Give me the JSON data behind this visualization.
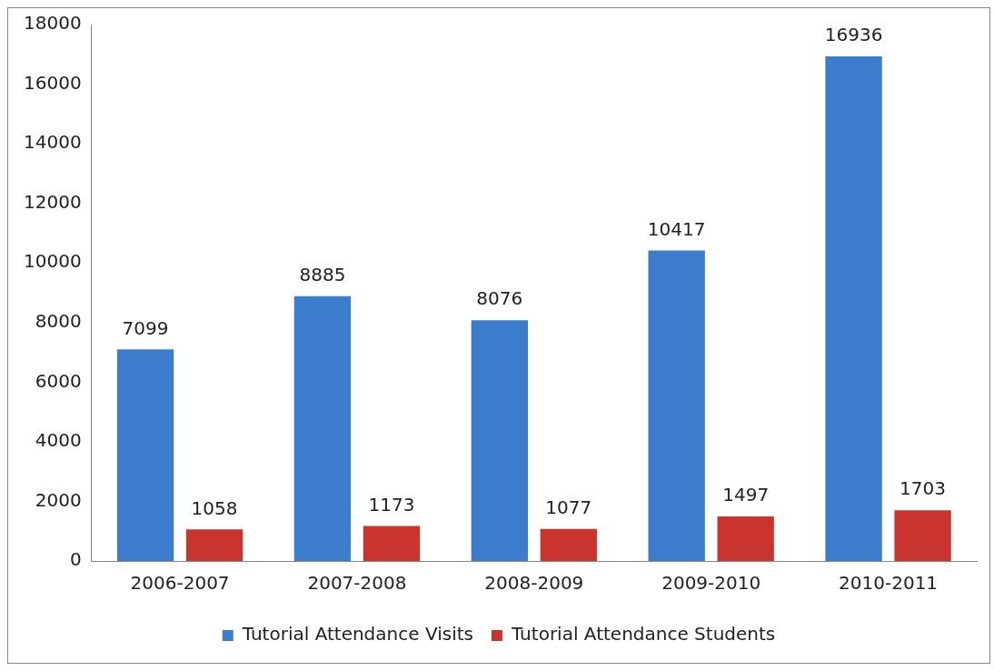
{
  "chart_data": {
    "type": "bar",
    "categories": [
      "2006-2007",
      "2007-2008",
      "2008-2009",
      "2009-2010",
      "2010-2011"
    ],
    "series": [
      {
        "name": "Tutorial Attendance Visits",
        "color": "#3b7ccc",
        "values": [
          7099,
          8885,
          8076,
          10417,
          16936
        ]
      },
      {
        "name": "Tutorial Attendance Students",
        "color": "#c9342f",
        "values": [
          1058,
          1173,
          1077,
          1497,
          1703
        ]
      }
    ],
    "ylim": [
      0,
      18000
    ],
    "yticks": [
      0,
      2000,
      4000,
      6000,
      8000,
      10000,
      12000,
      14000,
      16000,
      18000
    ],
    "grid": false,
    "legend": "bottom",
    "data_labels": true
  }
}
